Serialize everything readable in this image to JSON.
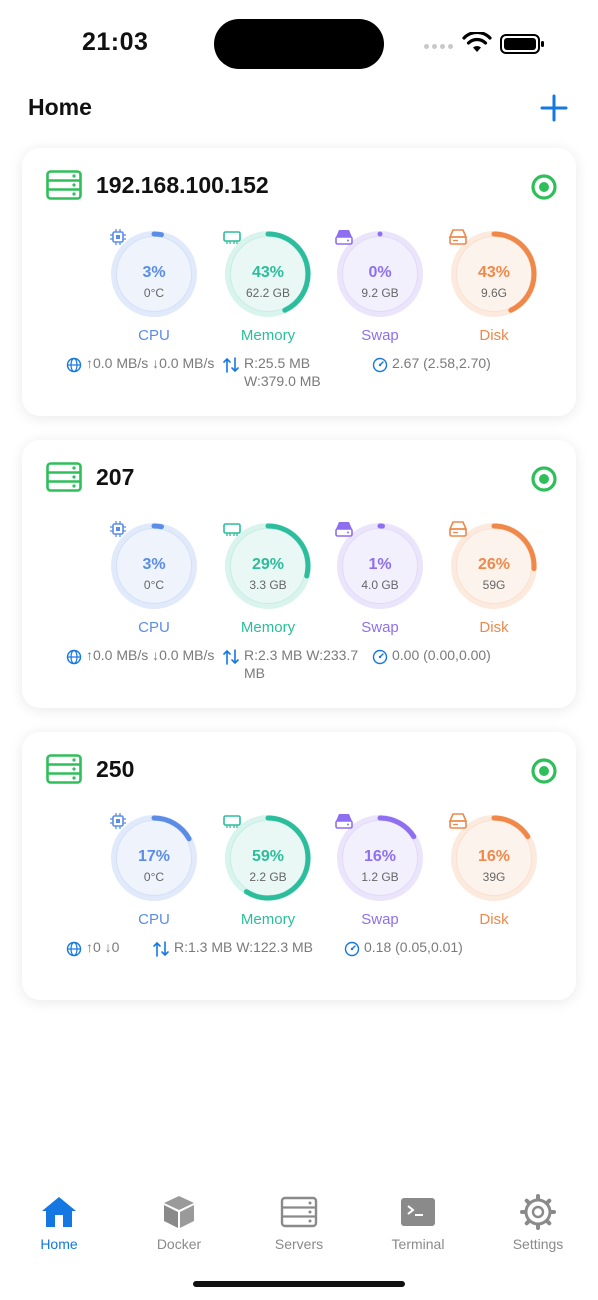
{
  "status_bar": {
    "time": "21:03"
  },
  "header": {
    "title": "Home"
  },
  "colors": {
    "cpu": "#5b8de6",
    "memory": "#2bbd9c",
    "swap": "#8e6ff0",
    "disk": "#f0884a",
    "online": "#2fbf5a",
    "accent": "#1477e2"
  },
  "servers": [
    {
      "name": "192.168.100.152",
      "cpu": {
        "percent": "3%",
        "sub": "0°C",
        "label": "CPU",
        "fill": 0.03
      },
      "memory": {
        "percent": "43%",
        "sub": "62.2 GB",
        "label": "Memory",
        "fill": 0.43
      },
      "swap": {
        "percent": "0%",
        "sub": "9.2 GB",
        "label": "Swap",
        "fill": 0.0
      },
      "disk": {
        "percent": "43%",
        "sub": "9.6G",
        "label": "Disk",
        "fill": 0.43
      },
      "network": "↑0.0 MB/s ↓0.0 MB/s",
      "io": "R:25.5 MB W:379.0 MB",
      "load": "2.67 (2.58,2.70)"
    },
    {
      "name": "207",
      "cpu": {
        "percent": "3%",
        "sub": "0°C",
        "label": "CPU",
        "fill": 0.03
      },
      "memory": {
        "percent": "29%",
        "sub": "3.3 GB",
        "label": "Memory",
        "fill": 0.29
      },
      "swap": {
        "percent": "1%",
        "sub": "4.0 GB",
        "label": "Swap",
        "fill": 0.01
      },
      "disk": {
        "percent": "26%",
        "sub": "59G",
        "label": "Disk",
        "fill": 0.26
      },
      "network": "↑0.0 MB/s ↓0.0 MB/s",
      "io": "R:2.3 MB W:233.7 MB",
      "load": "0.00 (0.00,0.00)"
    },
    {
      "name": "250",
      "cpu": {
        "percent": "17%",
        "sub": "0°C",
        "label": "CPU",
        "fill": 0.17
      },
      "memory": {
        "percent": "59%",
        "sub": "2.2 GB",
        "label": "Memory",
        "fill": 0.59
      },
      "swap": {
        "percent": "16%",
        "sub": "1.2 GB",
        "label": "Swap",
        "fill": 0.16
      },
      "disk": {
        "percent": "16%",
        "sub": "39G",
        "label": "Disk",
        "fill": 0.16
      },
      "network": "↑0 ↓0",
      "io": "R:1.3 MB W:122.3 MB",
      "load": "0.18 (0.05,0.01)"
    }
  ],
  "tabs": [
    {
      "label": "Home",
      "icon": "house-icon",
      "active": true
    },
    {
      "label": "Docker",
      "icon": "box-icon",
      "active": false
    },
    {
      "label": "Servers",
      "icon": "server-icon",
      "active": false
    },
    {
      "label": "Terminal",
      "icon": "terminal-icon",
      "active": false
    },
    {
      "label": "Settings",
      "icon": "gear-icon",
      "active": false
    }
  ]
}
